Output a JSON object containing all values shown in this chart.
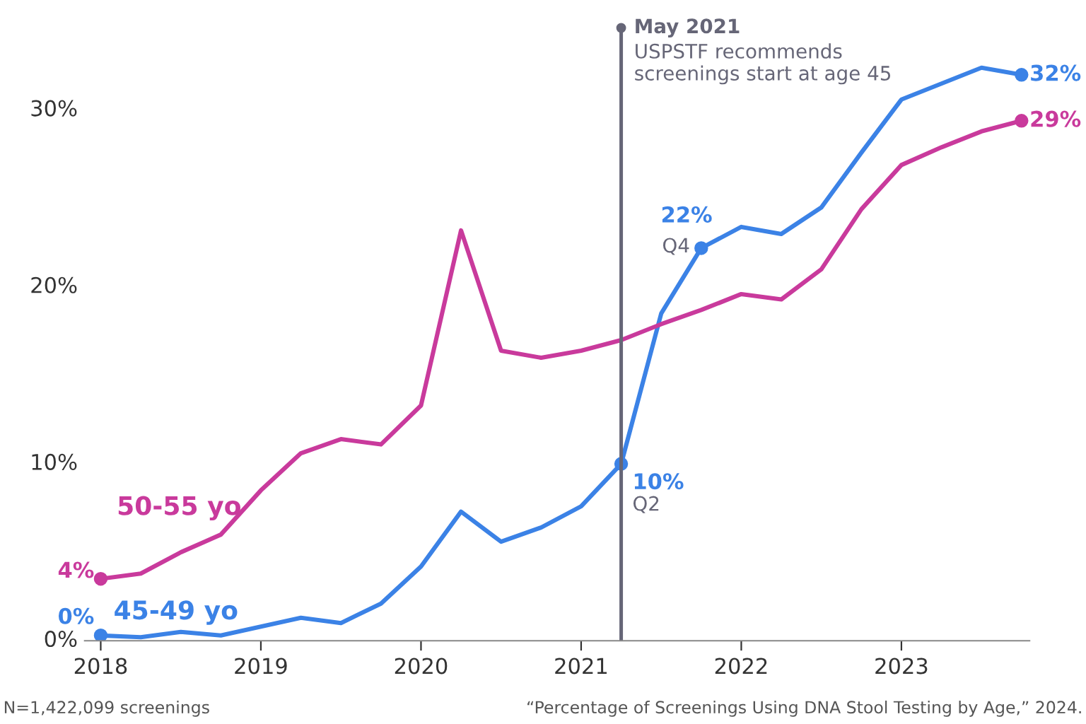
{
  "chart_data": {
    "type": "line",
    "x": [
      2018,
      2018.25,
      2018.5,
      2018.75,
      2019,
      2019.25,
      2019.5,
      2019.75,
      2020,
      2020.25,
      2020.5,
      2020.75,
      2021,
      2021.25,
      2021.5,
      2021.75,
      2022,
      2022.25,
      2022.5,
      2022.75,
      2023,
      2023.25,
      2023.5,
      2023.75
    ],
    "series": [
      {
        "name": "45-49 yo",
        "color": "#3b82e6",
        "values": [
          0.3,
          0.2,
          0.5,
          0.3,
          0.8,
          1.3,
          1.0,
          2.1,
          4.2,
          7.3,
          5.6,
          6.4,
          7.6,
          10,
          18.5,
          22.2,
          23.4,
          23.0,
          24.5,
          27.6,
          30.6,
          31.5,
          32.4,
          32.0
        ],
        "value_labels": [
          "0%",
          null,
          null,
          null,
          null,
          null,
          null,
          null,
          null,
          null,
          null,
          null,
          null,
          "10%",
          null,
          "22%",
          null,
          null,
          null,
          null,
          null,
          null,
          null,
          "32%"
        ]
      },
      {
        "name": "50-55 yo",
        "color": "#c93a9c",
        "values": [
          3.5,
          3.8,
          5.0,
          6.0,
          8.5,
          10.6,
          11.4,
          11.1,
          13.3,
          23.2,
          16.4,
          16.0,
          16.4,
          17.0,
          17.9,
          18.7,
          19.6,
          19.3,
          21.0,
          24.4,
          26.9,
          27.9,
          28.8,
          29.4
        ],
        "value_labels": [
          "4%",
          null,
          null,
          null,
          null,
          null,
          null,
          null,
          null,
          null,
          null,
          null,
          null,
          null,
          null,
          null,
          null,
          null,
          null,
          null,
          null,
          null,
          null,
          "29%"
        ]
      }
    ],
    "xlim": [
      2017.9,
      2023.8
    ],
    "xticks": [
      2018,
      2019,
      2020,
      2021,
      2022,
      2023
    ],
    "ylim": [
      0,
      35
    ],
    "yticks": [
      {
        "value": 0,
        "label": "0%"
      },
      {
        "value": 10,
        "label": "10%"
      },
      {
        "value": 20,
        "label": "20%"
      },
      {
        "value": 30,
        "label": "30%"
      }
    ],
    "grid": false,
    "legend": false,
    "line_style": "solid",
    "marker": "none",
    "ref_lines": [
      {
        "axis": "x",
        "value": 2021.25,
        "label": "May 2021",
        "color": "#666677",
        "line_style": "solid"
      }
    ],
    "annotations": [
      "USPSTF recommends\nscreenings start at age 45",
      {
        "text": "Q2",
        "x": 2021.25,
        "y": 10
      },
      {
        "text": "Q4",
        "x": 2021.75,
        "y": 22.2
      },
      "N=1,422,099 screenings",
      "“Percentage of Screenings Using DNA Stool Testing by Age,” 2024."
    ]
  }
}
